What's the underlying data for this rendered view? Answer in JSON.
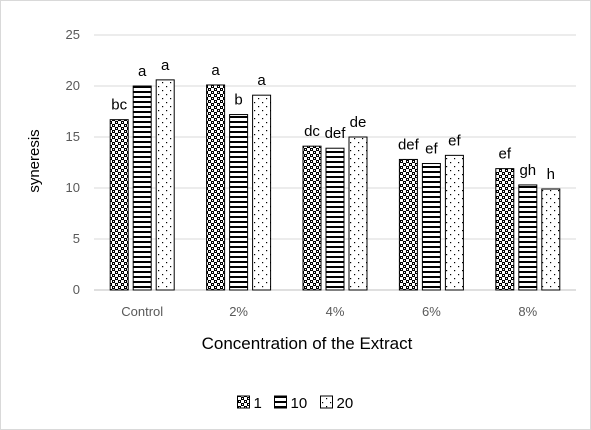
{
  "chart_data": {
    "type": "bar",
    "title": "",
    "xlabel": "Concentration of the Extract",
    "ylabel": "syneresis",
    "ylim": [
      0,
      25
    ],
    "yticks": [
      0,
      5,
      10,
      15,
      20,
      25
    ],
    "grid": true,
    "legend_position": "bottom",
    "categories": [
      "Control",
      "2%",
      "4%",
      "6%",
      "8%"
    ],
    "series": [
      {
        "name": "1",
        "pattern": "checker",
        "values": [
          16.7,
          20.1,
          14.1,
          12.8,
          11.9
        ],
        "labels": [
          "bc",
          "a",
          "dc",
          "def",
          "ef"
        ]
      },
      {
        "name": "10",
        "pattern": "horizontal-lines",
        "values": [
          20.0,
          17.2,
          13.9,
          12.4,
          10.3
        ],
        "labels": [
          "a",
          "b",
          "def",
          "ef",
          "gh"
        ]
      },
      {
        "name": "20",
        "pattern": "dots",
        "values": [
          20.6,
          19.1,
          15.0,
          13.2,
          9.9
        ],
        "labels": [
          "a",
          "a",
          "de",
          "ef",
          "h"
        ]
      }
    ],
    "colors": {
      "bar_fill": "#000000",
      "bar_background": "#ffffff",
      "grid": "#d9d9d9",
      "axis": "#bfbfbf"
    }
  }
}
